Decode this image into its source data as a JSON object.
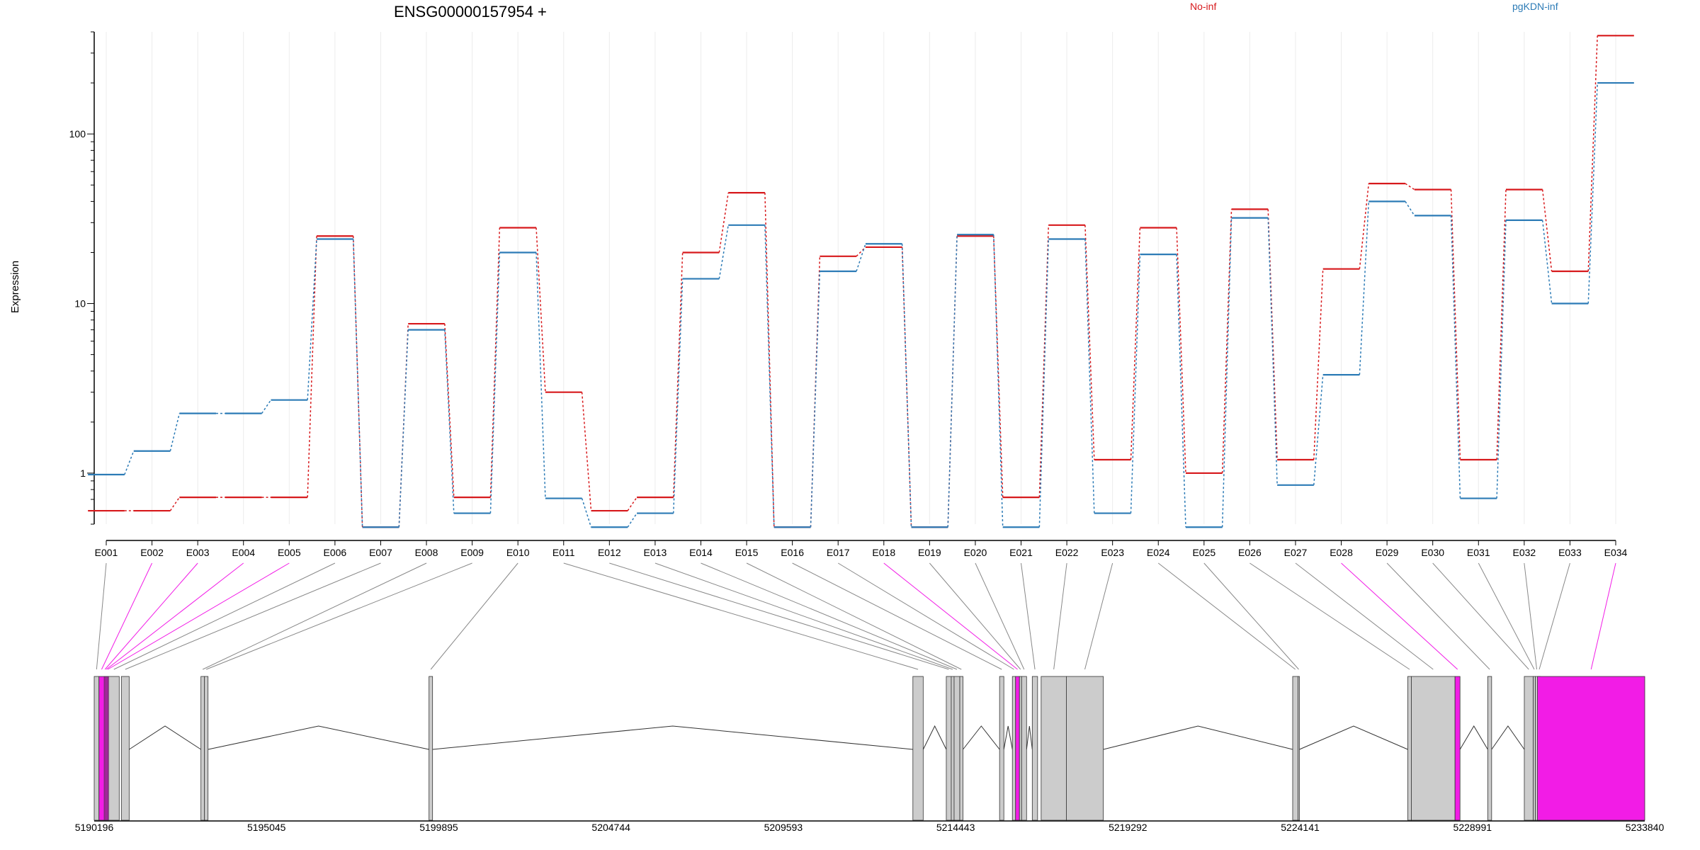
{
  "chart_data": {
    "type": "line",
    "title": "ENSG00000157954 +",
    "ylabel": "Expression",
    "y_scale": "log",
    "y_ticks": [
      "1",
      "10",
      "100"
    ],
    "ylim": [
      0.5,
      400
    ],
    "grid": true,
    "legend_placement": "top",
    "categories": [
      "E001",
      "E002",
      "E003",
      "E004",
      "E005",
      "E006",
      "E007",
      "E008",
      "E009",
      "E010",
      "E011",
      "E012",
      "E013",
      "E014",
      "E015",
      "E016",
      "E017",
      "E018",
      "E019",
      "E020",
      "E021",
      "E022",
      "E023",
      "E024",
      "E025",
      "E026",
      "E027",
      "E028",
      "E029",
      "E030",
      "E031",
      "E032",
      "E033",
      "E034"
    ],
    "series": [
      {
        "name": "No-inf",
        "color": "#d7191c",
        "values": [
          0.6,
          0.6,
          0.72,
          0.72,
          0.72,
          25,
          0.48,
          7.6,
          0.72,
          28,
          3,
          0.6,
          0.72,
          20,
          45,
          0.48,
          19,
          21.5,
          0.48,
          25,
          0.72,
          29,
          1.2,
          28,
          1,
          36,
          1.2,
          16,
          51,
          47,
          1.2,
          47,
          15.5,
          380
        ]
      },
      {
        "name": "pgKDN-inf",
        "color": "#2c7bb6",
        "values": [
          0.98,
          1.35,
          2.25,
          2.25,
          2.7,
          24,
          0.48,
          7,
          0.58,
          20,
          0.71,
          0.48,
          0.58,
          14,
          29,
          0.48,
          15.5,
          22.5,
          0.48,
          25.5,
          0.48,
          24,
          0.58,
          19.5,
          0.48,
          32,
          0.85,
          3.8,
          40,
          33,
          0.71,
          31,
          10,
          200
        ]
      }
    ],
    "gene_model": {
      "axis_ticks": [
        "5190196",
        "5195045",
        "5199895",
        "5204744",
        "5209593",
        "5214443",
        "5219292",
        "5224141",
        "5228991",
        "5233840"
      ],
      "range": [
        5190196,
        5233840
      ],
      "exon_highlight_color": "#f21ce6",
      "exon_fill_color": "#cccccc",
      "highlighted_exons": [
        "E002",
        "E003",
        "E004",
        "E005",
        "E018",
        "E028",
        "E034"
      ],
      "exons": [
        {
          "id": "E001",
          "start": 5190196,
          "end": 5190330
        },
        {
          "id": "E002",
          "start": 5190330,
          "end": 5190480
        },
        {
          "id": "E003",
          "start": 5190480,
          "end": 5190520
        },
        {
          "id": "E004",
          "start": 5190520,
          "end": 5190560
        },
        {
          "id": "E005",
          "start": 5190560,
          "end": 5190600
        },
        {
          "id": "E006",
          "start": 5190600,
          "end": 5190900
        },
        {
          "id": "E007",
          "start": 5190960,
          "end": 5191180
        },
        {
          "id": "E008",
          "start": 5193200,
          "end": 5193300
        },
        {
          "id": "E009",
          "start": 5193300,
          "end": 5193400
        },
        {
          "id": "E010",
          "start": 5199620,
          "end": 5199720
        },
        {
          "id": "E011",
          "start": 5213240,
          "end": 5213530
        },
        {
          "id": "E012",
          "start": 5214180,
          "end": 5214320
        },
        {
          "id": "E013",
          "start": 5214320,
          "end": 5214400
        },
        {
          "id": "E014",
          "start": 5214400,
          "end": 5214560
        },
        {
          "id": "E015",
          "start": 5214560,
          "end": 5214650
        },
        {
          "id": "E016",
          "start": 5215680,
          "end": 5215800
        },
        {
          "id": "E017",
          "start": 5216040,
          "end": 5216130
        },
        {
          "id": "E018",
          "start": 5216130,
          "end": 5216240
        },
        {
          "id": "E019",
          "start": 5216240,
          "end": 5216300
        },
        {
          "id": "E020",
          "start": 5216300,
          "end": 5216440
        },
        {
          "id": "E021",
          "start": 5216600,
          "end": 5216750
        },
        {
          "id": "E022",
          "start": 5216850,
          "end": 5217560
        },
        {
          "id": "E023",
          "start": 5217560,
          "end": 5218600
        },
        {
          "id": "E024",
          "start": 5223930,
          "end": 5224080
        },
        {
          "id": "E025",
          "start": 5224080,
          "end": 5224120
        },
        {
          "id": "E026",
          "start": 5227170,
          "end": 5227270
        },
        {
          "id": "E027",
          "start": 5227270,
          "end": 5228500
        },
        {
          "id": "E028",
          "start": 5228500,
          "end": 5228640
        },
        {
          "id": "E029",
          "start": 5229420,
          "end": 5229530
        },
        {
          "id": "E030",
          "start": 5230450,
          "end": 5230700
        },
        {
          "id": "E031",
          "start": 5230700,
          "end": 5230760
        },
        {
          "id": "E032",
          "start": 5230760,
          "end": 5230840
        },
        {
          "id": "E033",
          "start": 5230840,
          "end": 5230900
        },
        {
          "id": "E034",
          "start": 5230820,
          "end": 5233840
        }
      ]
    }
  }
}
